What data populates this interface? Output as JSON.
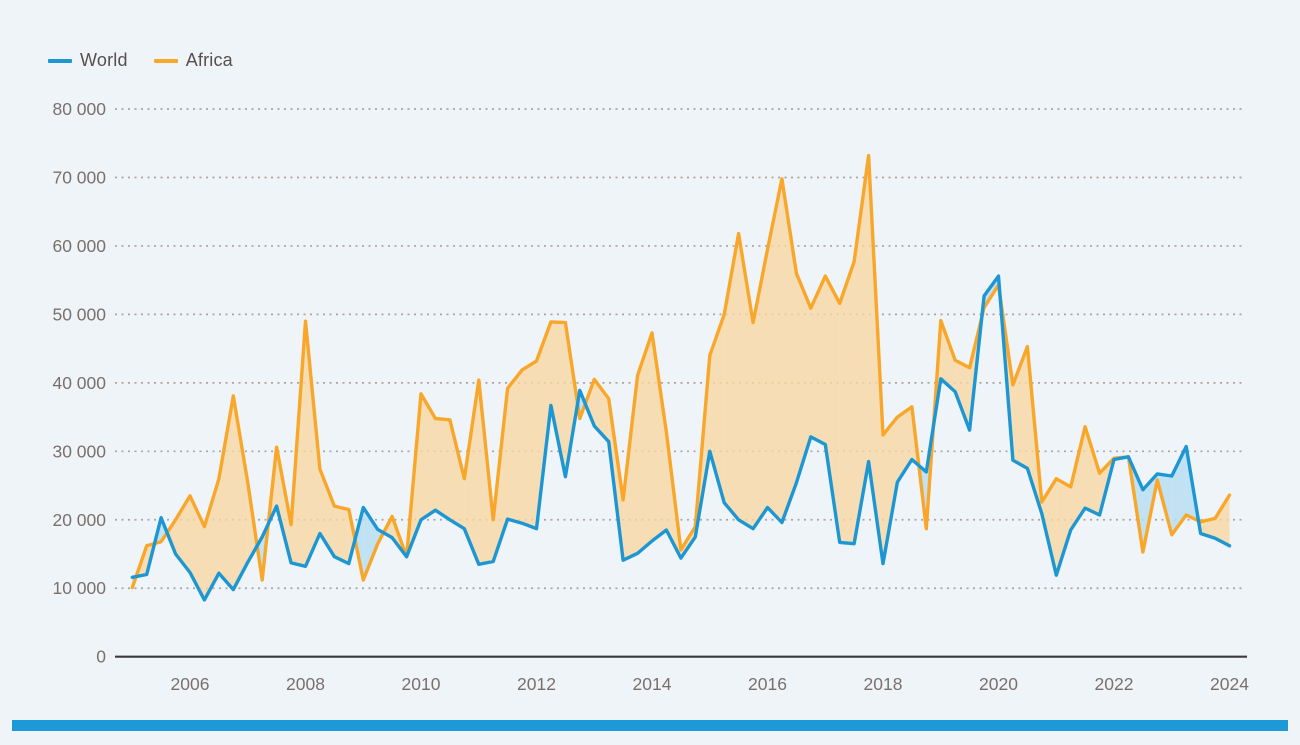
{
  "legend": {
    "items": [
      {
        "label": "World",
        "color": "#1d96d4"
      },
      {
        "label": "Africa",
        "color": "#f9a72b"
      }
    ]
  },
  "footer": {
    "bar_color": "#1c99d6"
  },
  "colors": {
    "background": "#eff4f9",
    "world_line": "#1d96d4",
    "africa_line": "#f9a72b",
    "fill_africa_above": "#f7d7a3",
    "fill_world_above": "#b7def2",
    "gridline": "#a59c95",
    "axis_line": "#3b3b3a",
    "tick_label": "#7a706b"
  },
  "chart_data": {
    "type": "line",
    "title": "",
    "xlabel": "",
    "ylabel": "",
    "legend_position": "top-left",
    "grid": true,
    "ylim": [
      0,
      80000
    ],
    "y_axis": {
      "ticks": [
        "0",
        "10 000",
        "20 000",
        "30 000",
        "40 000",
        "50 000",
        "60 000",
        "70 000",
        "80 000"
      ]
    },
    "x_axis": {
      "ticks": [
        "2006",
        "2008",
        "2010",
        "2012",
        "2014",
        "2016",
        "2018",
        "2020",
        "2022",
        "2024"
      ]
    },
    "x": [
      "2005Q1",
      "2005Q2",
      "2005Q3",
      "2005Q4",
      "2006Q1",
      "2006Q2",
      "2006Q3",
      "2006Q4",
      "2007Q1",
      "2007Q2",
      "2007Q3",
      "2007Q4",
      "2008Q1",
      "2008Q2",
      "2008Q3",
      "2008Q4",
      "2009Q1",
      "2009Q2",
      "2009Q3",
      "2009Q4",
      "2010Q1",
      "2010Q2",
      "2010Q3",
      "2010Q4",
      "2011Q1",
      "2011Q2",
      "2011Q3",
      "2011Q4",
      "2012Q1",
      "2012Q2",
      "2012Q3",
      "2012Q4",
      "2013Q1",
      "2013Q2",
      "2013Q3",
      "2013Q4",
      "2014Q1",
      "2014Q2",
      "2014Q3",
      "2014Q4",
      "2015Q1",
      "2015Q2",
      "2015Q3",
      "2015Q4",
      "2016Q1",
      "2016Q2",
      "2016Q3",
      "2016Q4",
      "2017Q1",
      "2017Q2",
      "2017Q3",
      "2017Q4",
      "2018Q1",
      "2018Q2",
      "2018Q3",
      "2018Q4",
      "2019Q1",
      "2019Q2",
      "2019Q3",
      "2019Q4",
      "2020Q1",
      "2020Q2",
      "2020Q3",
      "2020Q4",
      "2021Q1",
      "2021Q2",
      "2021Q3",
      "2021Q4",
      "2022Q1",
      "2022Q2",
      "2022Q3",
      "2022Q4",
      "2023Q1",
      "2023Q2",
      "2023Q3",
      "2023Q4",
      "2024Q1"
    ],
    "series": [
      {
        "name": "World",
        "color": "#1d96d4",
        "values": [
          11600,
          12000,
          20300,
          15000,
          12300,
          8300,
          12200,
          9800,
          13800,
          17500,
          22000,
          13700,
          13200,
          18000,
          14600,
          13600,
          21800,
          18600,
          17400,
          14600,
          20000,
          21400,
          20000,
          18700,
          13500,
          13900,
          20100,
          19500,
          18700,
          36700,
          26300,
          38900,
          33700,
          31400,
          14100,
          15100,
          16900,
          18500,
          14400,
          17500,
          30000,
          22500,
          20000,
          18700,
          21800,
          19600,
          25400,
          32100,
          31000,
          16700,
          16500,
          28500,
          13600,
          25500,
          28800,
          27000,
          40600,
          38700,
          33100,
          52700,
          55600,
          28700,
          27500,
          20900,
          11900,
          18500,
          21700,
          20700,
          28800,
          29200,
          24400,
          26700,
          26400,
          30700,
          18000,
          17300,
          16200
        ]
      },
      {
        "name": "Africa",
        "color": "#f9a72b",
        "values": [
          10100,
          16200,
          16800,
          20000,
          23500,
          19000,
          26000,
          38100,
          25400,
          11200,
          30600,
          19300,
          49000,
          27400,
          22000,
          21500,
          11200,
          16500,
          20500,
          14600,
          38400,
          34800,
          34600,
          26000,
          40400,
          20000,
          39200,
          41900,
          43200,
          48900,
          48800,
          34800,
          40500,
          37700,
          22900,
          41100,
          47300,
          32800,
          15600,
          19000,
          44000,
          50000,
          61800,
          48800,
          59500,
          69800,
          56000,
          50900,
          55600,
          51600,
          57700,
          73200,
          32400,
          35000,
          36500,
          18700,
          49100,
          43300,
          42200,
          51000,
          54300,
          39700,
          45300,
          22600,
          26000,
          24800,
          33600,
          26800,
          29000,
          29200,
          15300,
          25800,
          17800,
          20700,
          19700,
          20200,
          23600
        ]
      }
    ]
  }
}
